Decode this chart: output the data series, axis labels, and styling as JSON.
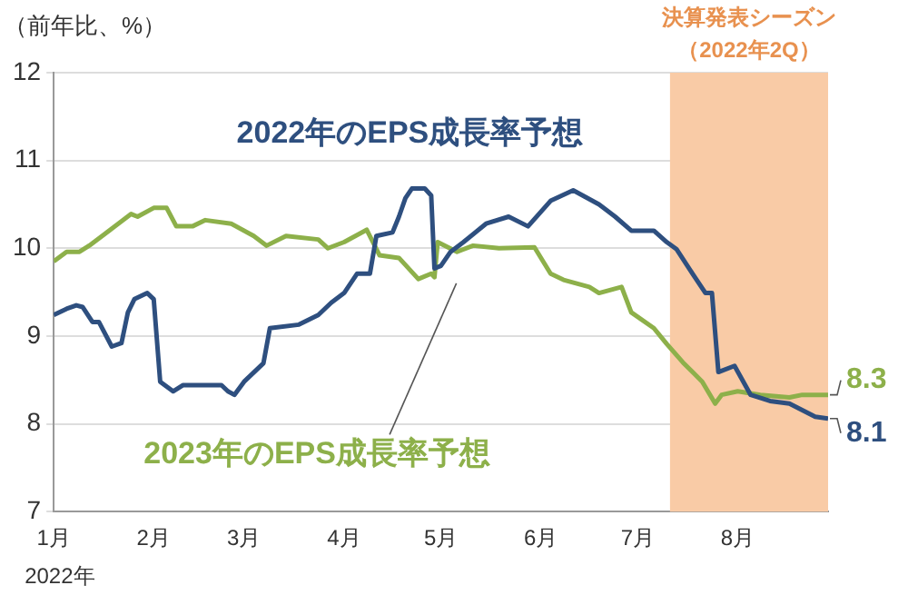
{
  "chart_data": {
    "type": "line",
    "ylabel": "（前年比、%）",
    "xlabel": "2022年",
    "xlim": [
      "2022-01-01",
      "2022-08-29"
    ],
    "xticks": [
      {
        "value": "2022-01-01",
        "label": "1月"
      },
      {
        "value": "2022-02-01",
        "label": "2月"
      },
      {
        "value": "2022-03-01",
        "label": "3月"
      },
      {
        "value": "2022-04-01",
        "label": "4月"
      },
      {
        "value": "2022-05-01",
        "label": "5月"
      },
      {
        "value": "2022-06-01",
        "label": "6月"
      },
      {
        "value": "2022-07-01",
        "label": "7月"
      },
      {
        "value": "2022-08-01",
        "label": "8月"
      }
    ],
    "ylim": [
      7,
      12
    ],
    "yticks": [
      7,
      8,
      9,
      10,
      11,
      12
    ],
    "grid": "y",
    "legend": false,
    "marker": "none",
    "line_style": "solid",
    "bands": [
      {
        "axis": "x",
        "from": "2022-07-11",
        "to": "2022-08-29",
        "label": "決算発表シーズン（2022年2Q）",
        "color": "#f9cba6"
      }
    ],
    "series": [
      {
        "name": "2022年のEPS成長率予想",
        "color": "#2e4f7f",
        "x": [
          "2022-01-01",
          "2022-01-05",
          "2022-01-08",
          "2022-01-10",
          "2022-01-13",
          "2022-01-15",
          "2022-01-19",
          "2022-01-22",
          "2022-01-24",
          "2022-01-26",
          "2022-01-30",
          "2022-02-01",
          "2022-02-03",
          "2022-02-07",
          "2022-02-10",
          "2022-02-22",
          "2022-02-24",
          "2022-02-26",
          "2022-03-01",
          "2022-03-07",
          "2022-03-09",
          "2022-03-18",
          "2022-03-24",
          "2022-03-28",
          "2022-04-01",
          "2022-04-05",
          "2022-04-09",
          "2022-04-11",
          "2022-04-16",
          "2022-04-18",
          "2022-04-20",
          "2022-04-22",
          "2022-04-26",
          "2022-04-28",
          "2022-04-29",
          "2022-05-01",
          "2022-05-04",
          "2022-05-08",
          "2022-05-15",
          "2022-05-22",
          "2022-05-28",
          "2022-06-04",
          "2022-06-11",
          "2022-06-19",
          "2022-06-24",
          "2022-06-29",
          "2022-07-06",
          "2022-07-10",
          "2022-07-13",
          "2022-07-18",
          "2022-07-22",
          "2022-07-24",
          "2022-07-26",
          "2022-07-31",
          "2022-08-05",
          "2022-08-11",
          "2022-08-17",
          "2022-08-25",
          "2022-08-29"
        ],
        "values": [
          9.24,
          9.31,
          9.35,
          9.33,
          9.16,
          9.16,
          8.88,
          8.92,
          9.27,
          9.42,
          9.49,
          9.42,
          8.48,
          8.37,
          8.44,
          8.44,
          8.37,
          8.33,
          8.48,
          8.69,
          9.09,
          9.13,
          9.24,
          9.38,
          9.49,
          9.71,
          9.71,
          10.14,
          10.18,
          10.36,
          10.57,
          10.68,
          10.68,
          10.6,
          9.77,
          9.8,
          9.96,
          10.07,
          10.28,
          10.36,
          10.25,
          10.54,
          10.66,
          10.5,
          10.36,
          10.2,
          10.2,
          10.07,
          9.99,
          9.71,
          9.49,
          9.49,
          8.59,
          8.66,
          8.33,
          8.26,
          8.23,
          8.08,
          8.06
        ],
        "value_labels": [
          null,
          null,
          null,
          null,
          null,
          null,
          null,
          null,
          null,
          null,
          null,
          null,
          null,
          null,
          null,
          null,
          null,
          null,
          null,
          null,
          null,
          null,
          null,
          null,
          null,
          null,
          null,
          null,
          null,
          null,
          null,
          null,
          null,
          null,
          null,
          null,
          null,
          null,
          null,
          null,
          null,
          null,
          null,
          null,
          null,
          null,
          null,
          null,
          null,
          null,
          null,
          null,
          null,
          null,
          null,
          null,
          null,
          null,
          "8.1"
        ]
      },
      {
        "name": "2023年のEPS成長率予想",
        "color": "#8db04a",
        "x": [
          "2022-01-01",
          "2022-01-05",
          "2022-01-09",
          "2022-01-12",
          "2022-01-20",
          "2022-01-25",
          "2022-01-27",
          "2022-02-01",
          "2022-02-05",
          "2022-02-08",
          "2022-02-13",
          "2022-02-17",
          "2022-02-25",
          "2022-03-04",
          "2022-03-08",
          "2022-03-14",
          "2022-03-24",
          "2022-03-27",
          "2022-04-01",
          "2022-04-08",
          "2022-04-12",
          "2022-04-18",
          "2022-04-24",
          "2022-04-28",
          "2022-04-29",
          "2022-04-30",
          "2022-05-06",
          "2022-05-11",
          "2022-05-19",
          "2022-05-30",
          "2022-06-04",
          "2022-06-08",
          "2022-06-16",
          "2022-06-19",
          "2022-06-26",
          "2022-06-29",
          "2022-07-06",
          "2022-07-10",
          "2022-07-15",
          "2022-07-21",
          "2022-07-25",
          "2022-07-27",
          "2022-08-01",
          "2022-08-08",
          "2022-08-17",
          "2022-08-21",
          "2022-08-29"
        ],
        "values": [
          9.85,
          9.96,
          9.96,
          10.03,
          10.25,
          10.39,
          10.36,
          10.46,
          10.46,
          10.25,
          10.25,
          10.32,
          10.28,
          10.14,
          10.03,
          10.14,
          10.1,
          10.0,
          10.07,
          10.21,
          9.92,
          9.89,
          9.65,
          9.71,
          9.67,
          10.07,
          9.96,
          10.03,
          10.0,
          10.01,
          9.71,
          9.64,
          9.56,
          9.49,
          9.56,
          9.27,
          9.09,
          8.91,
          8.7,
          8.48,
          8.23,
          8.33,
          8.37,
          8.33,
          8.3,
          8.33,
          8.33
        ],
        "value_labels": [
          null,
          null,
          null,
          null,
          null,
          null,
          null,
          null,
          null,
          null,
          null,
          null,
          null,
          null,
          null,
          null,
          null,
          null,
          null,
          null,
          null,
          null,
          null,
          null,
          null,
          null,
          null,
          null,
          null,
          null,
          null,
          null,
          null,
          null,
          null,
          null,
          null,
          null,
          null,
          null,
          null,
          null,
          null,
          null,
          null,
          null,
          "8.3"
        ]
      }
    ]
  }
}
